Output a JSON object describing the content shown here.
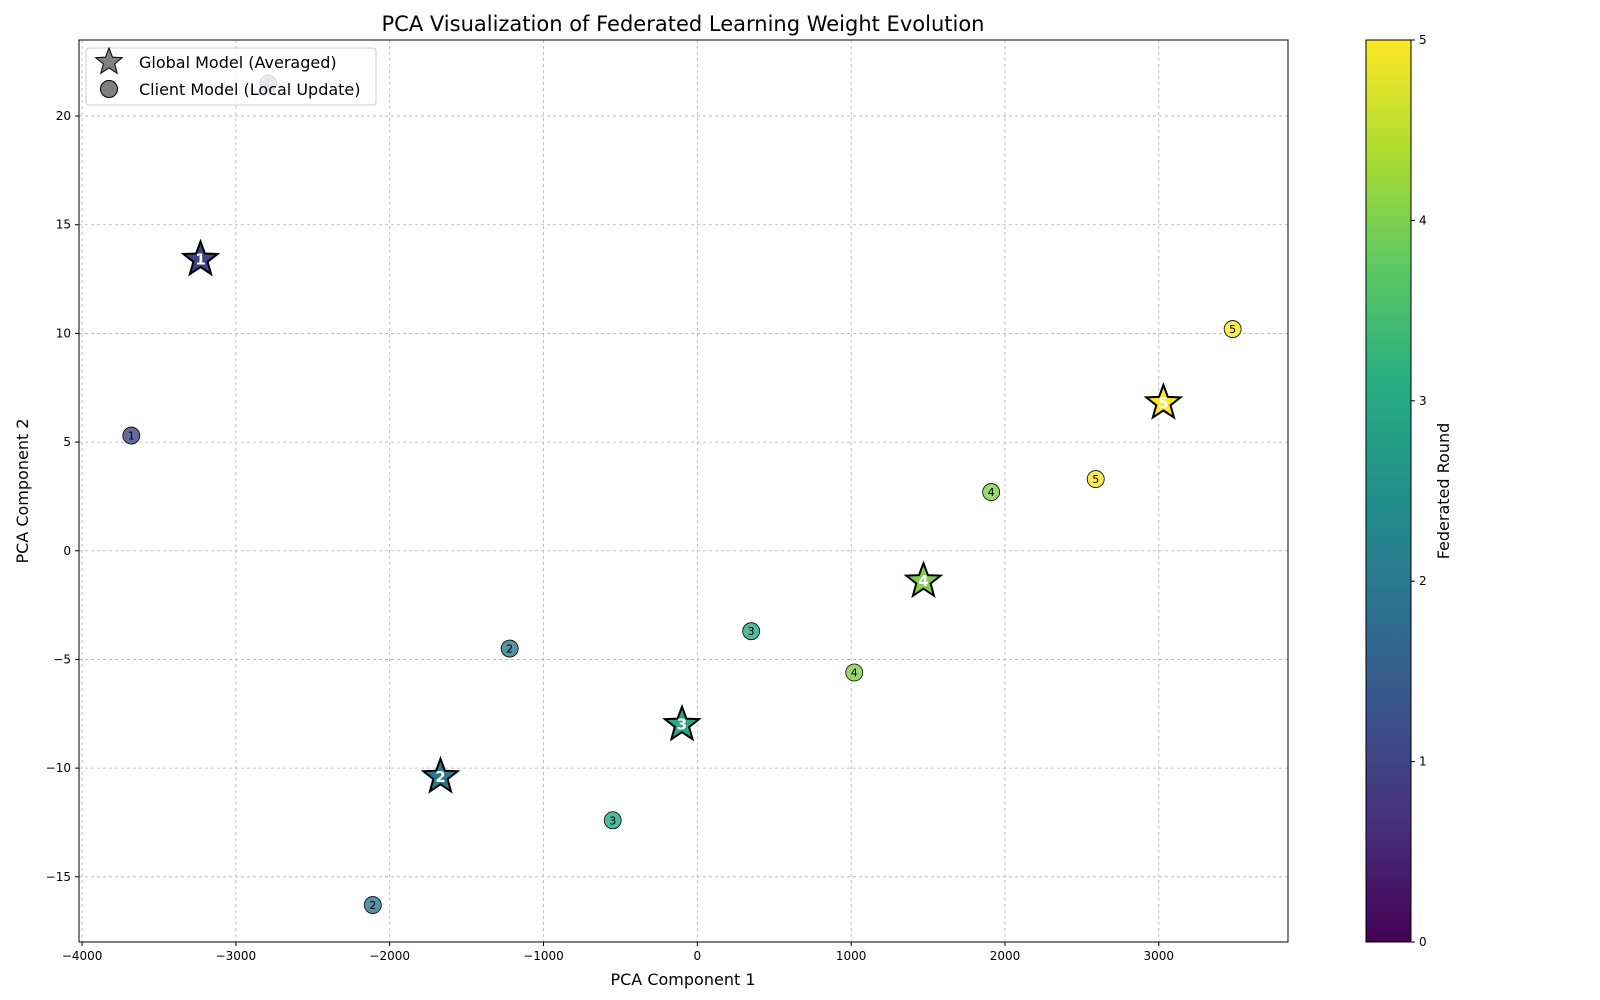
{
  "chart_data": {
    "type": "scatter",
    "title": "PCA Visualization of Federated Learning Weight Evolution",
    "xlabel": "PCA Component 1",
    "ylabel": "PCA Component 2",
    "xlim": [
      -4020,
      3840
    ],
    "ylim": [
      -18,
      23.5
    ],
    "xticks": [
      -4000,
      -3000,
      -2000,
      -1000,
      0,
      1000,
      2000,
      3000
    ],
    "yticks": [
      -15,
      -10,
      -5,
      0,
      5,
      10,
      15,
      20
    ],
    "grid": true,
    "legend_position": "top-left",
    "legend": [
      {
        "marker": "star",
        "label": "Global Model (Averaged)"
      },
      {
        "marker": "circle",
        "label": "Client Model (Local Update)"
      }
    ],
    "series": [
      {
        "name": "Global Model (Averaged)",
        "marker": "star",
        "points": [
          {
            "x": -3230,
            "y": 13.4,
            "round": 1
          },
          {
            "x": -1670,
            "y": -10.4,
            "round": 2
          },
          {
            "x": -100,
            "y": -8.0,
            "round": 3
          },
          {
            "x": 1470,
            "y": -1.4,
            "round": 4
          },
          {
            "x": 3030,
            "y": 6.8,
            "round": 5
          }
        ]
      },
      {
        "name": "Client Model (Local Update)",
        "marker": "circle",
        "points": [
          {
            "x": -2790,
            "y": 21.5,
            "round": 1
          },
          {
            "x": -3680,
            "y": 5.3,
            "round": 1
          },
          {
            "x": -1220,
            "y": -4.5,
            "round": 2
          },
          {
            "x": -2110,
            "y": -16.3,
            "round": 2
          },
          {
            "x": 350,
            "y": -3.7,
            "round": 3
          },
          {
            "x": -550,
            "y": -12.4,
            "round": 3
          },
          {
            "x": 1910,
            "y": 2.7,
            "round": 4
          },
          {
            "x": 1020,
            "y": -5.6,
            "round": 4
          },
          {
            "x": 3480,
            "y": 10.2,
            "round": 5
          },
          {
            "x": 2590,
            "y": 3.3,
            "round": 5
          }
        ]
      }
    ],
    "colorbar": {
      "label": "Federated Round",
      "range": [
        0,
        5
      ],
      "ticks": [
        0,
        1,
        2,
        3,
        4,
        5
      ],
      "colormap": "viridis"
    }
  }
}
